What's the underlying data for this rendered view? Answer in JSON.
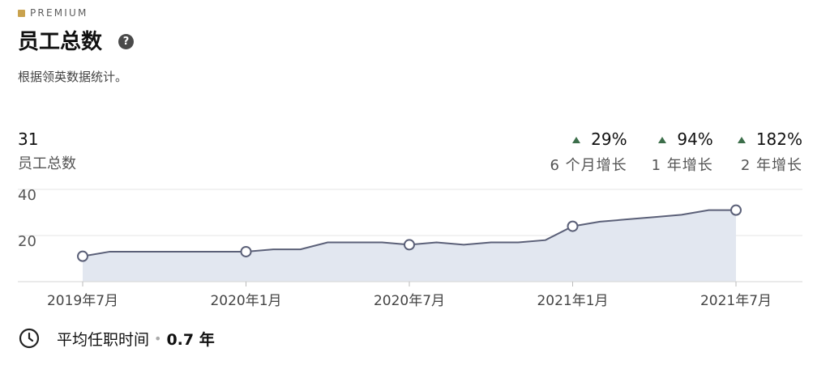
{
  "header": {
    "premium_label": "PREMIUM",
    "title": "员工总数",
    "help_icon": "question-circle-icon",
    "subtitle": "根据领英数据统计。"
  },
  "summary": {
    "total_value": "31",
    "total_label": "员工总数",
    "growth": [
      {
        "value": "29%",
        "label": "6 个月增长",
        "direction": "up"
      },
      {
        "value": "94%",
        "label": "1 年增长",
        "direction": "up"
      },
      {
        "value": "182%",
        "label": "2 年增长",
        "direction": "up"
      }
    ]
  },
  "chart_data": {
    "type": "area",
    "x": [
      "2019-07",
      "2019-08",
      "2019-09",
      "2019-10",
      "2019-11",
      "2019-12",
      "2020-01",
      "2020-02",
      "2020-03",
      "2020-04",
      "2020-05",
      "2020-06",
      "2020-07",
      "2020-08",
      "2020-09",
      "2020-10",
      "2020-11",
      "2020-12",
      "2021-01",
      "2021-02",
      "2021-03",
      "2021-04",
      "2021-05",
      "2021-06",
      "2021-07"
    ],
    "values": [
      11,
      13,
      13,
      13,
      13,
      13,
      13,
      14,
      14,
      17,
      17,
      17,
      16,
      17,
      16,
      17,
      17,
      18,
      24,
      26,
      27,
      28,
      29,
      31,
      31
    ],
    "markers": [
      "2019-07",
      "2020-01",
      "2020-07",
      "2021-01",
      "2021-07"
    ],
    "xticks": [
      "2019年7月",
      "2020年1月",
      "2020年7月",
      "2021年1月",
      "2021年7月"
    ],
    "yticks": [
      20,
      40
    ],
    "ylim": [
      0,
      40
    ],
    "grid": true,
    "colors": {
      "line": "#5b6078",
      "fill": "#e2e7f0",
      "grid": "#e6e6e6",
      "marker_fill": "#ffffff"
    }
  },
  "footer": {
    "icon": "clock-icon",
    "label": "平均任职时间",
    "value": "0.7 年"
  }
}
